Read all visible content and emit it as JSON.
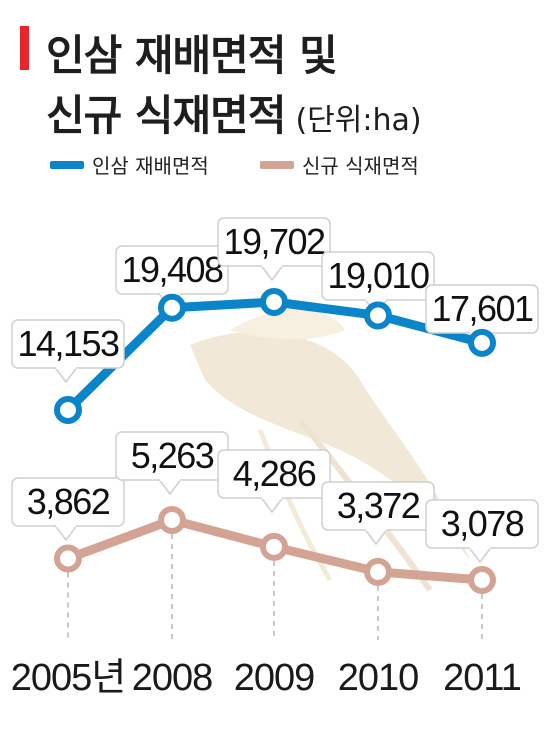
{
  "title": {
    "line1": "인삼 재배면적 및",
    "line2": "신규 식재면적",
    "unit": "(단위:ha)"
  },
  "colors": {
    "accent": "#e8262b",
    "series1": "#0a85c9",
    "series2": "#d3a493",
    "dash": "#b5b5b5"
  },
  "chart_data": {
    "type": "line",
    "title": "인삼 재배면적 및 신규 식재면적",
    "unit": "(단위:ha)",
    "categories": [
      "2005년",
      "2008",
      "2009",
      "2010",
      "2011"
    ],
    "series": [
      {
        "name": "인삼 재배면적",
        "values": [
          14153,
          19408,
          19702,
          19010,
          17601
        ],
        "labels": [
          "14,153",
          "19,408",
          "19,702",
          "19,010",
          "17,601"
        ]
      },
      {
        "name": "신규 식재면적",
        "values": [
          3862,
          5263,
          4286,
          3372,
          3078
        ],
        "labels": [
          "3,862",
          "5,263",
          "4,286",
          "3,372",
          "3,078"
        ]
      }
    ],
    "grid": false,
    "legend": "top-left"
  }
}
